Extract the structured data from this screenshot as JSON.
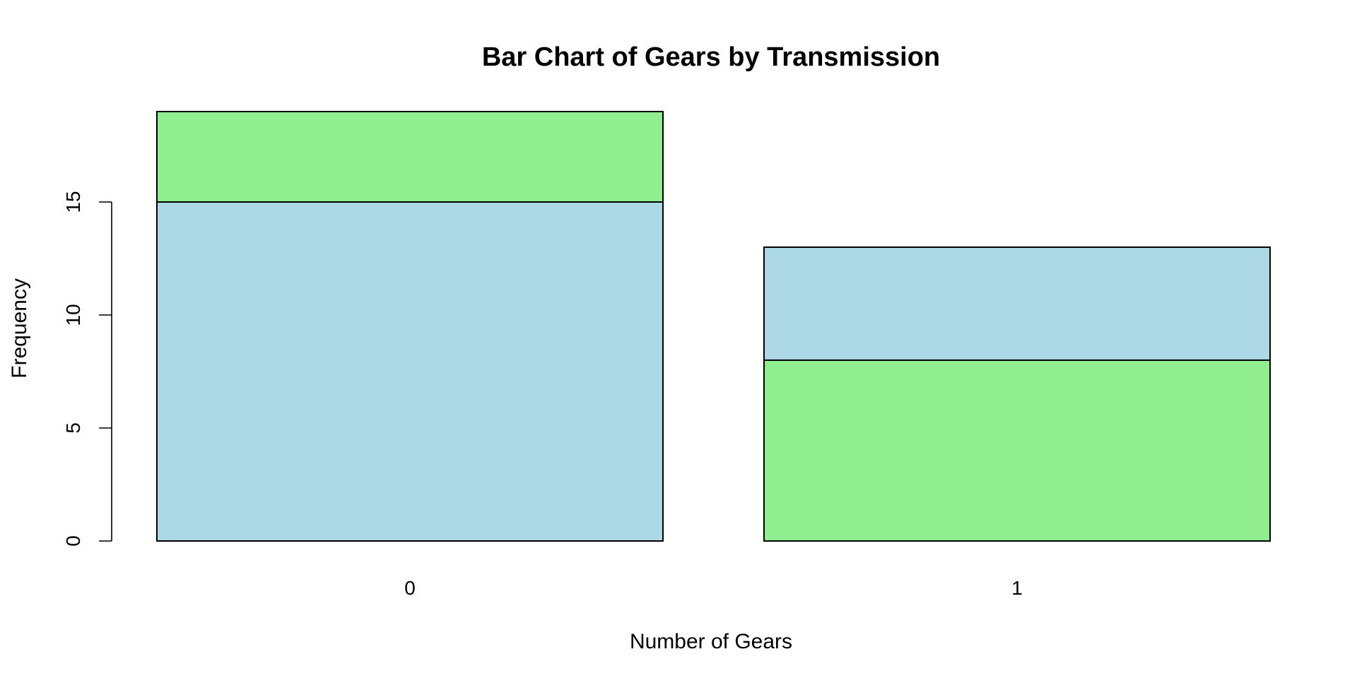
{
  "chart_data": {
    "type": "bar",
    "stacked": true,
    "title": "Bar Chart of Gears by Transmission",
    "xlabel": "Number of Gears",
    "ylabel": "Frequency",
    "categories": [
      "0",
      "1"
    ],
    "ylim": [
      0,
      19
    ],
    "yticks": [
      0,
      5,
      10,
      15
    ],
    "series": [
      {
        "color": "#ADD8E6",
        "values": [
          15,
          5
        ]
      },
      {
        "color": "#90EE90",
        "values": [
          4,
          8
        ]
      }
    ],
    "stack_order": [
      [
        "#ADD8E6",
        "#90EE90"
      ],
      [
        "#90EE90",
        "#ADD8E6"
      ]
    ],
    "grid": false,
    "legend": "none"
  }
}
